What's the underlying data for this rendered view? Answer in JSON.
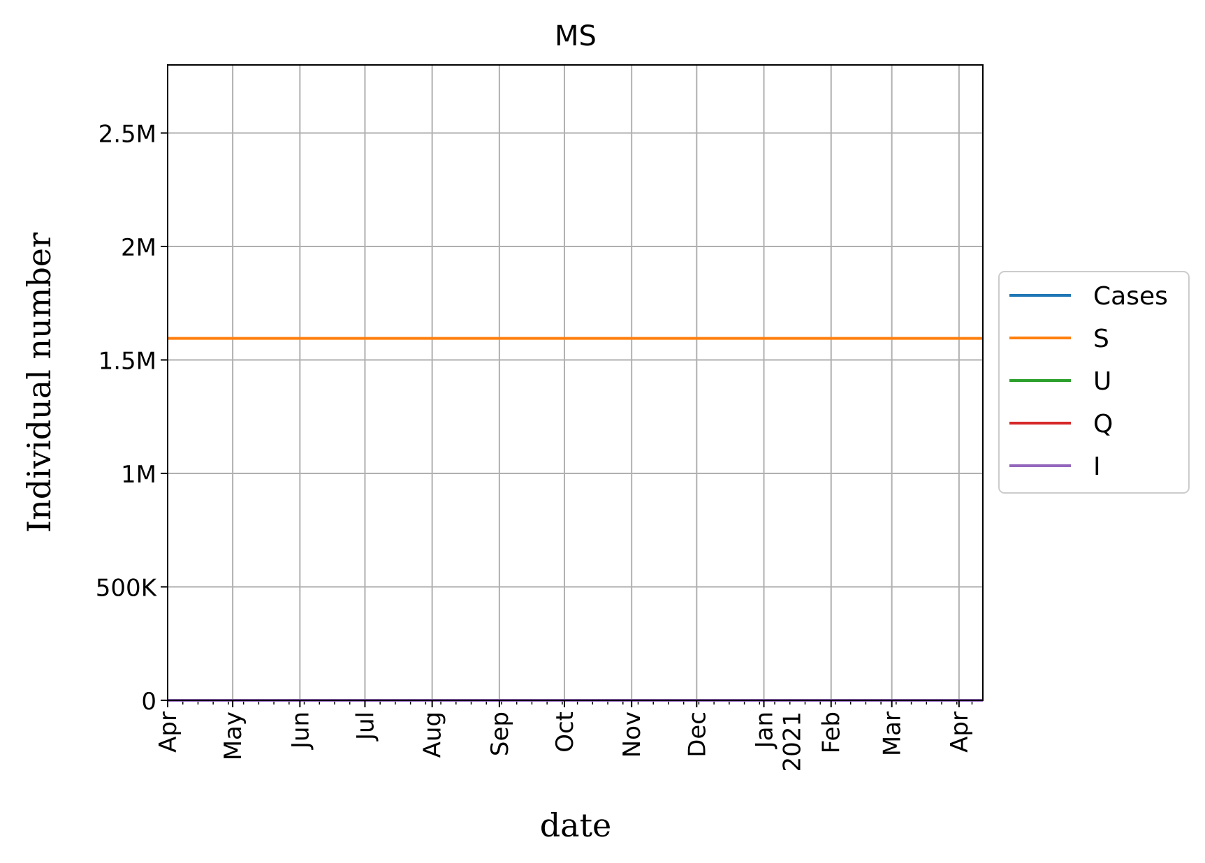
{
  "chart_data": {
    "type": "line",
    "title": "MS",
    "xlabel": "date",
    "ylabel": "Individual number",
    "x_tick_labels": [
      "Apr",
      "May",
      "Jun",
      "Jul",
      "Aug",
      "Sep",
      "Oct",
      "Nov",
      "Dec",
      "Jan\n2021",
      "Feb",
      "Mar",
      "Apr"
    ],
    "x_tick_dates": [
      "2020-04-01",
      "2020-05-01",
      "2020-06-01",
      "2020-07-01",
      "2020-08-01",
      "2020-09-01",
      "2020-10-01",
      "2020-11-01",
      "2020-12-01",
      "2021-01-01",
      "2021-02-01",
      "2021-03-01",
      "2021-04-01"
    ],
    "xlim": [
      "2020-04-01",
      "2021-04-12"
    ],
    "y_tick_labels": [
      "0",
      "500K",
      "1M",
      "1.5M",
      "2M",
      "2.5M"
    ],
    "y_tick_values": [
      0,
      500000,
      1000000,
      1500000,
      2000000,
      2500000
    ],
    "ylim": [
      0,
      2800000
    ],
    "grid": true,
    "legend_position": "right-outside",
    "series": [
      {
        "name": "Cases",
        "color": "#1f77b4",
        "x": [
          "2020-04-01",
          "2021-04-12"
        ],
        "y": [
          0,
          0
        ]
      },
      {
        "name": "S",
        "color": "#ff7f0e",
        "x": [
          "2020-04-01",
          "2021-04-12"
        ],
        "y": [
          1595000,
          1595000
        ]
      },
      {
        "name": "U",
        "color": "#2ca02c",
        "x": [
          "2020-04-01",
          "2021-04-12"
        ],
        "y": [
          0,
          0
        ]
      },
      {
        "name": "Q",
        "color": "#d62728",
        "x": [
          "2020-04-01",
          "2021-04-12"
        ],
        "y": [
          0,
          0
        ]
      },
      {
        "name": "I",
        "color": "#9467bd",
        "x": [
          "2020-04-01",
          "2021-04-12"
        ],
        "y": [
          0,
          0
        ]
      }
    ]
  }
}
